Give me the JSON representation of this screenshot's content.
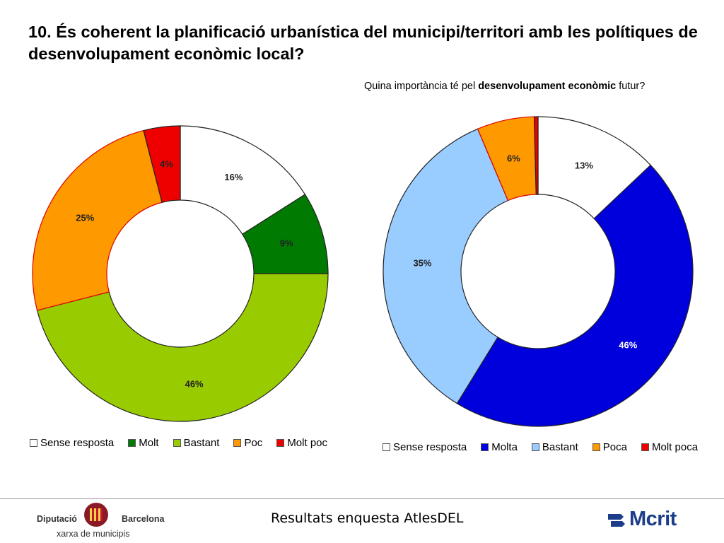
{
  "title": "10. És coherent la planificació urbanística del municipi/territori amb les polítiques de desenvolupament econòmic local?",
  "subtitle": {
    "before": "Quina importància té pel ",
    "bold": "desenvolupament econòmic",
    "after": " futur?"
  },
  "chart_data": [
    {
      "type": "pie",
      "donut": true,
      "categories": [
        "Sense resposta",
        "Molt",
        "Bastant",
        "Poc",
        "Molt poc"
      ],
      "values": [
        16,
        9,
        46,
        25,
        4
      ],
      "labels": [
        "16%",
        "9%",
        "46%",
        "25%",
        "4%"
      ],
      "colors": [
        "#ffffff",
        "#007a00",
        "#99cc00",
        "#ff9900",
        "#ee0000"
      ],
      "legend_position": "bottom"
    },
    {
      "type": "pie",
      "donut": true,
      "categories": [
        "Sense resposta",
        "Molta",
        "Bastant",
        "Poca",
        "Molt poca"
      ],
      "values": [
        13,
        46,
        35,
        6,
        0.4
      ],
      "labels": [
        "13%",
        "46%",
        "35%",
        "6%",
        ""
      ],
      "colors": [
        "#ffffff",
        "#0000dd",
        "#99ccff",
        "#ff9900",
        "#ee0000"
      ],
      "legend_position": "bottom"
    }
  ],
  "footer": {
    "center_text": "Resultats enquesta AtlesDEL",
    "left_logo": {
      "name_left": "Diputació",
      "name_right": "Barcelona",
      "sub": "xarxa de municipis",
      "icon": "seal-icon"
    },
    "right_logo": {
      "word": "Mcrit",
      "icon": "mcrit-arrows-icon"
    }
  }
}
